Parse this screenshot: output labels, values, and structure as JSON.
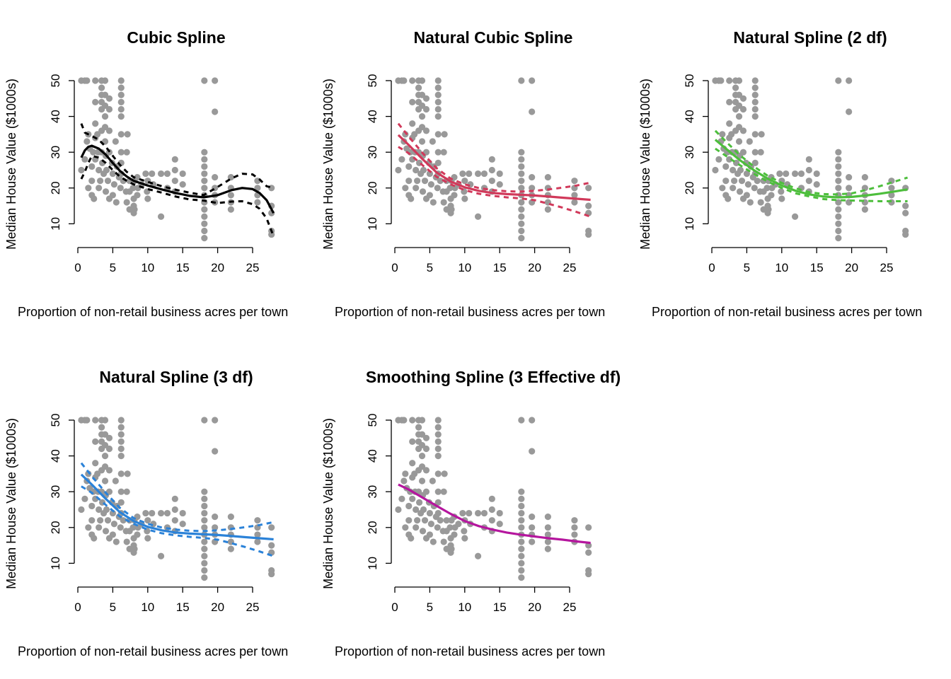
{
  "chart_data": [
    {
      "type": "scatter",
      "title": "Cubic Spline",
      "xlabel": "Proportion of non-retail business acres per town",
      "ylabel": "Median House Value ($1000s)",
      "xlim": [
        0,
        28
      ],
      "ylim": [
        5,
        50
      ],
      "xticks": [
        0,
        5,
        10,
        15,
        20,
        25
      ],
      "yticks": [
        10,
        20,
        30,
        40,
        50
      ],
      "color": "#000000",
      "fit": {
        "x": [
          0.5,
          1,
          1.5,
          2,
          3,
          4,
          5,
          6,
          7,
          8,
          10,
          12,
          14,
          16,
          18,
          20,
          22,
          23.5,
          25,
          26,
          27,
          28
        ],
        "y": [
          28.5,
          30.5,
          31.5,
          31.8,
          31.0,
          29.3,
          27.0,
          24.8,
          23.2,
          22.0,
          20.7,
          19.6,
          18.6,
          17.8,
          17.4,
          18.0,
          19.4,
          20.0,
          19.7,
          18.6,
          16.6,
          13.0
        ],
        "upper": [
          38.0,
          35.5,
          35.0,
          34.5,
          33.5,
          31.5,
          29.0,
          26.5,
          24.5,
          23.0,
          21.7,
          20.5,
          19.5,
          18.7,
          18.0,
          20.3,
          22.7,
          24.0,
          23.8,
          22.4,
          20.5,
          20.0
        ],
        "lower": [
          22.5,
          24.5,
          27.0,
          29.0,
          28.5,
          27.0,
          25.0,
          23.2,
          22.0,
          21.0,
          19.7,
          18.7,
          17.6,
          16.8,
          16.5,
          15.8,
          16.2,
          16.3,
          15.5,
          14.2,
          11.5,
          6.5
        ]
      }
    },
    {
      "type": "scatter",
      "title": "Natural Cubic Spline",
      "xlabel": "Proportion of non-retail business acres per town",
      "ylabel": "Median House Value ($1000s)",
      "xlim": [
        0,
        28
      ],
      "ylim": [
        5,
        50
      ],
      "xticks": [
        0,
        5,
        10,
        15,
        20,
        25
      ],
      "yticks": [
        10,
        20,
        30,
        40,
        50
      ],
      "color": "#d1395a",
      "fit": {
        "x": [
          0.5,
          2,
          4,
          6,
          8,
          10,
          12,
          14,
          16,
          18,
          20,
          22,
          24,
          26,
          28
        ],
        "y": [
          34.8,
          32.0,
          28.0,
          24.3,
          21.8,
          20.2,
          19.2,
          18.6,
          18.3,
          18.1,
          17.9,
          17.6,
          17.3,
          17.0,
          16.7
        ],
        "upper": [
          38.0,
          34.3,
          29.7,
          25.5,
          22.6,
          21.0,
          20.0,
          19.4,
          19.1,
          19.0,
          19.2,
          19.6,
          20.1,
          20.7,
          21.5
        ],
        "lower": [
          31.5,
          29.7,
          26.3,
          23.1,
          21.0,
          19.4,
          18.4,
          17.8,
          17.4,
          17.1,
          16.6,
          15.6,
          14.5,
          13.3,
          12.0
        ]
      }
    },
    {
      "type": "scatter",
      "title": "Natural Spline (2 df)",
      "xlabel": "Proportion of non-retail business acres per town",
      "ylabel": "Median House Value ($1000s)",
      "xlim": [
        0,
        28
      ],
      "ylim": [
        5,
        50
      ],
      "xticks": [
        0,
        5,
        10,
        15,
        20,
        25
      ],
      "yticks": [
        10,
        20,
        30,
        40,
        50
      ],
      "color": "#4dbe3c",
      "fit": {
        "x": [
          0.5,
          2,
          4,
          6,
          8,
          10,
          12,
          14,
          16,
          18,
          20,
          22,
          24,
          26,
          28
        ],
        "y": [
          33.5,
          31.0,
          27.8,
          25.0,
          22.6,
          20.7,
          19.2,
          18.2,
          17.6,
          17.4,
          17.5,
          17.9,
          18.4,
          19.0,
          19.6
        ],
        "upper": [
          36.0,
          33.0,
          29.2,
          26.0,
          23.4,
          21.4,
          19.9,
          18.8,
          18.3,
          18.2,
          18.5,
          19.4,
          20.5,
          21.7,
          22.9
        ],
        "lower": [
          31.0,
          29.0,
          26.4,
          24.0,
          21.8,
          20.0,
          18.5,
          17.6,
          16.9,
          16.6,
          16.5,
          16.4,
          16.3,
          16.3,
          16.3
        ]
      }
    },
    {
      "type": "scatter",
      "title": "Natural Spline (3 df)",
      "xlabel": "Proportion of non-retail business acres per town",
      "ylabel": "Median House Value ($1000s)",
      "xlim": [
        0,
        28
      ],
      "ylim": [
        5,
        50
      ],
      "xticks": [
        0,
        5,
        10,
        15,
        20,
        25
      ],
      "yticks": [
        10,
        20,
        30,
        40,
        50
      ],
      "color": "#2b82d8",
      "fit": {
        "x": [
          0.5,
          2,
          4,
          6,
          8,
          10,
          12,
          14,
          16,
          18,
          20,
          22,
          24,
          26,
          28
        ],
        "y": [
          34.8,
          32.0,
          28.0,
          24.3,
          21.8,
          20.2,
          19.2,
          18.6,
          18.3,
          18.1,
          17.9,
          17.6,
          17.3,
          17.0,
          16.7
        ],
        "upper": [
          38.0,
          34.3,
          29.7,
          25.5,
          22.6,
          21.0,
          20.0,
          19.4,
          19.1,
          19.0,
          19.2,
          19.6,
          20.1,
          20.7,
          21.5
        ],
        "lower": [
          31.5,
          29.7,
          26.3,
          23.1,
          21.0,
          19.4,
          18.4,
          17.8,
          17.4,
          17.1,
          16.6,
          15.6,
          14.5,
          13.3,
          12.0
        ]
      }
    },
    {
      "type": "scatter",
      "title": "Smoothing Spline (3 Effective df)",
      "xlabel": "Proportion of non-retail business acres per town",
      "ylabel": "Median House Value ($1000s)",
      "xlim": [
        0,
        28
      ],
      "ylim": [
        5,
        50
      ],
      "xticks": [
        0,
        5,
        10,
        15,
        20,
        25
      ],
      "yticks": [
        10,
        20,
        30,
        40,
        50
      ],
      "color": "#b5169e",
      "fit": {
        "x": [
          0.5,
          2,
          4,
          6,
          8,
          10,
          12,
          14,
          16,
          18,
          20,
          22,
          24,
          26,
          28
        ],
        "y": [
          32.0,
          30.6,
          28.3,
          26.0,
          23.8,
          21.8,
          20.4,
          19.4,
          18.6,
          18.0,
          17.5,
          17.0,
          16.6,
          16.1,
          15.7
        ]
      }
    }
  ],
  "scatter_points": [
    [
      0.5,
      50
    ],
    [
      1,
      50
    ],
    [
      1.3,
      50
    ],
    [
      2.5,
      50
    ],
    [
      3.4,
      50
    ],
    [
      3.9,
      50
    ],
    [
      6.2,
      50
    ],
    [
      18.1,
      50
    ],
    [
      19.6,
      50
    ],
    [
      19.6,
      41.3
    ],
    [
      3.4,
      48
    ],
    [
      3.4,
      46
    ],
    [
      3.4,
      44
    ],
    [
      3.4,
      42
    ],
    [
      2.5,
      44
    ],
    [
      3.9,
      46
    ],
    [
      3.9,
      43
    ],
    [
      4.5,
      45
    ],
    [
      4.5,
      42
    ],
    [
      6.2,
      48
    ],
    [
      6.2,
      46
    ],
    [
      6.2,
      44
    ],
    [
      6.2,
      42
    ],
    [
      6.2,
      40
    ],
    [
      2.5,
      38
    ],
    [
      3.9,
      40
    ],
    [
      0.5,
      25
    ],
    [
      1,
      28
    ],
    [
      1.3,
      33
    ],
    [
      1.5,
      35
    ],
    [
      1.7,
      31
    ],
    [
      2,
      26
    ],
    [
      2,
      22
    ],
    [
      2.2,
      30
    ],
    [
      2.5,
      34
    ],
    [
      2.5,
      28
    ],
    [
      2.8,
      35
    ],
    [
      2.9,
      30
    ],
    [
      3,
      25
    ],
    [
      3.2,
      22
    ],
    [
      3.4,
      36
    ],
    [
      3.4,
      30
    ],
    [
      3.5,
      27
    ],
    [
      3.7,
      24
    ],
    [
      3.9,
      37
    ],
    [
      3.9,
      33
    ],
    [
      4,
      29
    ],
    [
      4.1,
      25
    ],
    [
      4.3,
      22
    ],
    [
      4.5,
      36
    ],
    [
      4.5,
      30
    ],
    [
      4.9,
      27
    ],
    [
      5,
      24
    ],
    [
      5.2,
      21
    ],
    [
      5.4,
      33
    ],
    [
      5.6,
      26
    ],
    [
      5.9,
      23
    ],
    [
      6.1,
      20
    ],
    [
      6.2,
      35
    ],
    [
      6.2,
      30
    ],
    [
      6.2,
      27
    ],
    [
      6.2,
      24
    ],
    [
      6.5,
      22
    ],
    [
      6.9,
      19
    ],
    [
      7,
      30
    ],
    [
      7.1,
      35
    ],
    [
      7.4,
      22
    ],
    [
      7.4,
      19
    ],
    [
      7.9,
      20
    ],
    [
      8,
      17
    ],
    [
      8.1,
      22
    ],
    [
      8.1,
      14
    ],
    [
      8.5,
      23
    ],
    [
      8.5,
      18
    ],
    [
      8.6,
      20
    ],
    [
      9.1,
      21
    ],
    [
      9.7,
      24
    ],
    [
      9.9,
      19
    ],
    [
      10,
      22
    ],
    [
      10,
      17
    ],
    [
      10.6,
      24
    ],
    [
      10.8,
      21
    ],
    [
      11.9,
      24
    ],
    [
      11.9,
      12
    ],
    [
      12.8,
      24
    ],
    [
      12.8,
      20
    ],
    [
      13.9,
      25
    ],
    [
      13.9,
      22
    ],
    [
      13.9,
      19
    ],
    [
      13.9,
      28
    ],
    [
      15,
      24
    ],
    [
      15,
      21
    ],
    [
      1.5,
      20
    ],
    [
      2,
      18
    ],
    [
      2.3,
      17
    ],
    [
      3,
      20
    ],
    [
      4,
      19
    ],
    [
      4.5,
      17
    ],
    [
      5,
      18
    ],
    [
      5.5,
      16
    ],
    [
      7,
      16
    ],
    [
      7.4,
      14
    ],
    [
      8,
      13
    ],
    [
      8,
      15
    ],
    [
      18.1,
      30
    ],
    [
      18.1,
      28
    ],
    [
      18.1,
      26
    ],
    [
      18.1,
      24
    ],
    [
      18.1,
      22
    ],
    [
      18.1,
      20
    ],
    [
      18.1,
      18
    ],
    [
      18.1,
      16
    ],
    [
      18.1,
      14
    ],
    [
      18.1,
      12
    ],
    [
      18.1,
      10
    ],
    [
      18.1,
      8
    ],
    [
      18.1,
      6
    ],
    [
      19.6,
      23
    ],
    [
      19.6,
      20
    ],
    [
      19.6,
      18
    ],
    [
      19.6,
      16
    ],
    [
      21.9,
      23
    ],
    [
      21.9,
      20
    ],
    [
      21.9,
      18
    ],
    [
      21.9,
      16
    ],
    [
      21.9,
      14
    ],
    [
      25.7,
      22
    ],
    [
      25.7,
      20
    ],
    [
      25.7,
      18
    ],
    [
      25.7,
      16
    ],
    [
      27.7,
      20
    ],
    [
      27.7,
      15
    ],
    [
      27.7,
      13
    ],
    [
      27.7,
      8
    ],
    [
      27.7,
      7
    ]
  ]
}
